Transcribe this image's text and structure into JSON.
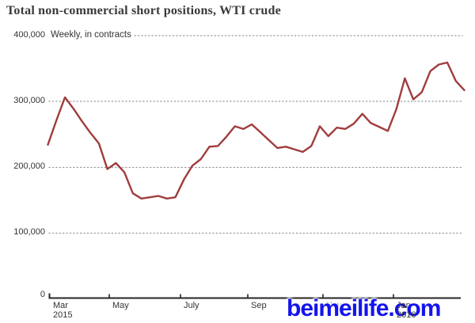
{
  "chart": {
    "title": "Total non-commercial short positions, WTI crude",
    "subtitle": "Weekly, in contracts",
    "y_labels": [
      "400,000",
      "300,000",
      "200,000",
      "100,000",
      "0"
    ],
    "x_ticks": [
      {
        "label": "Mar",
        "sub": "2015"
      },
      {
        "label": "May",
        "sub": ""
      },
      {
        "label": "July",
        "sub": ""
      },
      {
        "label": "Sep",
        "sub": ""
      },
      {
        "label": "Nov",
        "sub": ""
      },
      {
        "label": "Jan",
        "sub": "2016"
      }
    ]
  },
  "watermark": {
    "text": "beimeilife.com",
    "color": "#1414ee"
  },
  "chart_data": {
    "type": "line",
    "title": "Total non-commercial short positions, WTI crude",
    "subtitle": "Weekly, in contracts",
    "frequency": "weekly",
    "unit": "contracts",
    "x_range": "mid-March 2015 to early March 2016",
    "x_tick_labels": [
      "Mar 2015",
      "May",
      "July",
      "Sep",
      "Nov",
      "Jan 2016"
    ],
    "y_ticks": [
      0,
      100000,
      200000,
      300000,
      400000
    ],
    "ylim": [
      0,
      400000
    ],
    "grid": "horizontal-dotted",
    "legend": "none",
    "line_color": "#a03c3e",
    "series": [
      {
        "name": "Total non-commercial short positions, WTI crude",
        "values": [
          234000,
          271000,
          306000,
          289000,
          270000,
          252000,
          236000,
          197000,
          206000,
          192000,
          160000,
          152000,
          154000,
          156000,
          152000,
          154000,
          181000,
          202000,
          212000,
          231000,
          232000,
          246000,
          262000,
          258000,
          265000,
          253000,
          241000,
          229000,
          231000,
          227000,
          223000,
          232000,
          262000,
          247000,
          260000,
          258000,
          266000,
          281000,
          267000,
          261000,
          255000,
          288000,
          335000,
          303000,
          314000,
          346000,
          356000,
          359000,
          331000,
          317000
        ]
      }
    ]
  }
}
